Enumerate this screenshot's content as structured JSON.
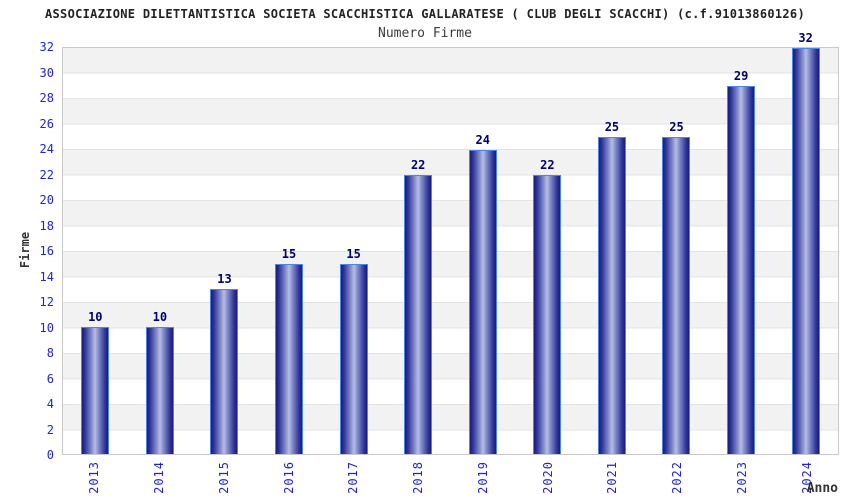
{
  "chart_data": {
    "type": "bar",
    "title": "ASSOCIAZIONE DILETTANTISTICA SOCIETA SCACCHISTICA GALLARATESE ( CLUB DEGLI SCACCHI) (c.f.91013860126)",
    "subtitle": "Numero Firme",
    "xlabel": "Anno",
    "ylabel": "Firme",
    "categories": [
      "2013",
      "2014",
      "2015",
      "2016",
      "2017",
      "2018",
      "2019",
      "2020",
      "2021",
      "2022",
      "2023",
      "2024"
    ],
    "values": [
      10,
      10,
      13,
      15,
      15,
      22,
      24,
      22,
      25,
      25,
      29,
      32
    ],
    "ylim": [
      0,
      32
    ],
    "ytick_step": 2,
    "yticks": [
      0,
      2,
      4,
      6,
      8,
      10,
      12,
      14,
      16,
      18,
      20,
      22,
      24,
      26,
      28,
      30,
      32
    ],
    "grid": "alternating horizontal bands every 2 units, light gray / white, thin gray boundary lines",
    "legend": "none",
    "bar_value_labels": "shown above each bar, bold navy",
    "colors": {
      "background": "#ffffff",
      "band_gray": "#f2f2f2",
      "band_white": "#ffffff",
      "grid_line": "#e3e3e3",
      "plot_border": "#c9c9c9",
      "bar_edge_dark": "#1b1b77",
      "bar_center_light": "#b6bde6",
      "bar_border": "#4a86e8",
      "tick_label_blue": "#2222dd",
      "value_label_navy": "#00006e",
      "title_color": "#222222",
      "axis_title_color": "#333333"
    }
  }
}
